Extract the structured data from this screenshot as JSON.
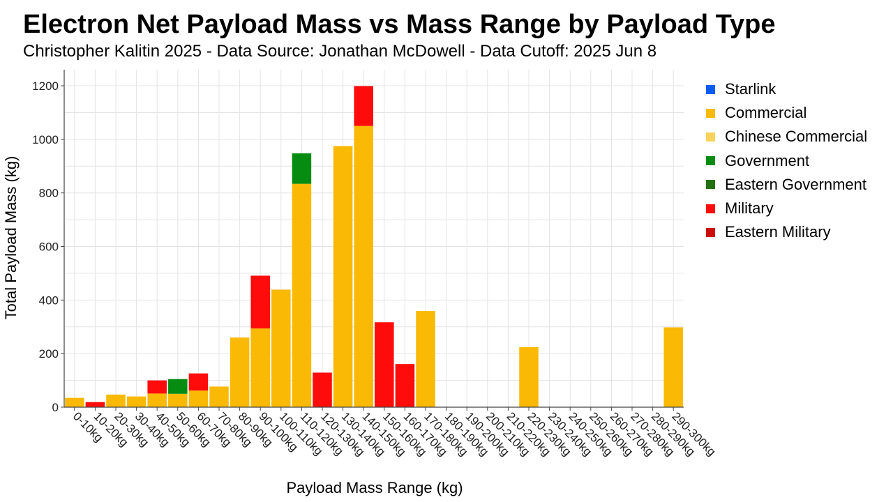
{
  "title": "Electron Net Payload Mass vs Mass Range by Payload Type",
  "subtitle": "Christopher Kalitin 2025 - Data Source: Jonathan McDowell - Data Cutoff: 2025 Jun 8",
  "legend": [
    {
      "name": "Starlink",
      "color": "#0a5cf5"
    },
    {
      "name": "Commercial",
      "color": "#f9b905"
    },
    {
      "name": "Chinese Commercial",
      "color": "#f9d25c"
    },
    {
      "name": "Government",
      "color": "#078c12"
    },
    {
      "name": "Eastern Government",
      "color": "#23700f"
    },
    {
      "name": "Military",
      "color": "#fe0c0c"
    },
    {
      "name": "Eastern Military",
      "color": "#cc0b0b"
    }
  ],
  "chart_data": {
    "type": "bar",
    "stacked": true,
    "title": "Electron Net Payload Mass vs Mass Range by Payload Type",
    "subtitle": "Christopher Kalitin 2025 - Data Source: Jonathan McDowell - Data Cutoff: 2025 Jun 8",
    "xlabel": "Payload Mass Range (kg)",
    "ylabel": "Total Payload Mass (kg)",
    "ylim": [
      0,
      1260
    ],
    "yticks": [
      0,
      200,
      400,
      600,
      800,
      1000,
      1200
    ],
    "grid": true,
    "legend_position": "right",
    "categories": [
      "0-10kg",
      "10-20kg",
      "20-30kg",
      "30-40kg",
      "40-50kg",
      "50-60kg",
      "60-70kg",
      "70-80kg",
      "80-90kg",
      "90-100kg",
      "100-110kg",
      "110-120kg",
      "120-130kg",
      "130-140kg",
      "140-150kg",
      "150-160kg",
      "160-170kg",
      "170-180kg",
      "180-190kg",
      "190-200kg",
      "200-210kg",
      "210-220kg",
      "220-230kg",
      "230-240kg",
      "240-250kg",
      "250-260kg",
      "260-270kg",
      "270-280kg",
      "280-290kg",
      "290-300kg"
    ],
    "series": [
      {
        "name": "Starlink",
        "color": "#0a5cf5",
        "values": [
          0,
          0,
          0,
          0,
          0,
          0,
          0,
          0,
          0,
          0,
          0,
          0,
          0,
          0,
          0,
          0,
          0,
          0,
          0,
          0,
          0,
          0,
          0,
          0,
          0,
          0,
          0,
          0,
          0,
          0
        ]
      },
      {
        "name": "Commercial",
        "color": "#f9b905",
        "values": [
          35,
          0,
          47,
          40,
          51,
          50,
          62,
          77,
          260,
          294,
          439,
          834,
          0,
          975,
          1050,
          0,
          0,
          359,
          0,
          0,
          0,
          0,
          224,
          0,
          0,
          0,
          0,
          0,
          0,
          298
        ]
      },
      {
        "name": "Chinese Commercial",
        "color": "#f9d25c",
        "values": [
          0,
          0,
          0,
          0,
          0,
          0,
          0,
          0,
          0,
          0,
          0,
          0,
          0,
          0,
          0,
          0,
          0,
          0,
          0,
          0,
          0,
          0,
          0,
          0,
          0,
          0,
          0,
          0,
          0,
          0
        ]
      },
      {
        "name": "Government",
        "color": "#078c12",
        "values": [
          0,
          0,
          0,
          0,
          0,
          55,
          0,
          0,
          0,
          0,
          0,
          114,
          0,
          0,
          0,
          0,
          0,
          0,
          0,
          0,
          0,
          0,
          0,
          0,
          0,
          0,
          0,
          0,
          0,
          0
        ]
      },
      {
        "name": "Eastern Government",
        "color": "#23700f",
        "values": [
          0,
          0,
          0,
          0,
          0,
          0,
          0,
          0,
          0,
          0,
          0,
          0,
          0,
          0,
          0,
          0,
          0,
          0,
          0,
          0,
          0,
          0,
          0,
          0,
          0,
          0,
          0,
          0,
          0,
          0
        ]
      },
      {
        "name": "Military",
        "color": "#fe0c0c",
        "values": [
          0,
          19,
          0,
          0,
          49,
          0,
          64,
          0,
          0,
          197,
          0,
          0,
          129,
          0,
          149,
          317,
          161,
          0,
          0,
          0,
          0,
          0,
          0,
          0,
          0,
          0,
          0,
          0,
          0,
          0
        ]
      },
      {
        "name": "Eastern Military",
        "color": "#cc0b0b",
        "values": [
          0,
          0,
          0,
          0,
          0,
          0,
          0,
          0,
          0,
          0,
          0,
          0,
          0,
          0,
          0,
          0,
          0,
          0,
          0,
          0,
          0,
          0,
          0,
          0,
          0,
          0,
          0,
          0,
          0,
          0
        ]
      }
    ]
  }
}
